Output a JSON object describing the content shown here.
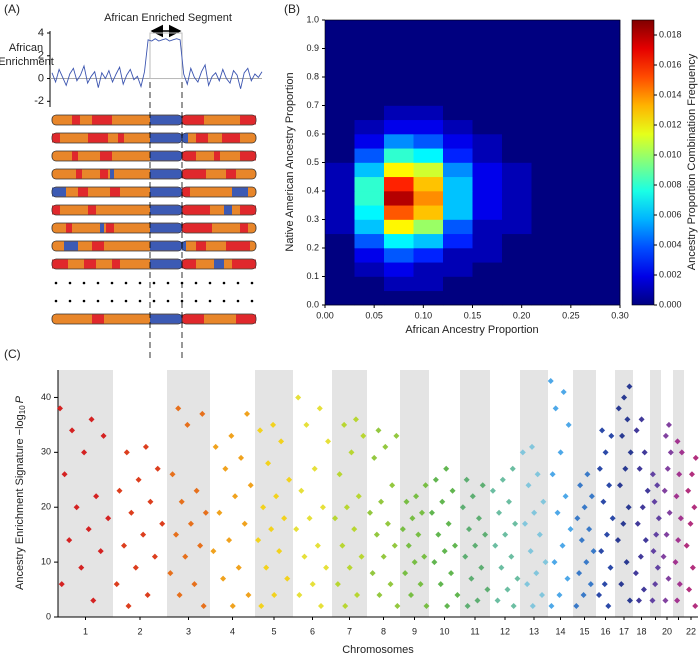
{
  "chart_data": [
    {
      "type": "line",
      "panel_label": "(A)",
      "annotation": "African Enriched Segment",
      "ylabel": [
        "African",
        "Enrichment"
      ],
      "color": "#3c55b0",
      "ylim": [
        -2.5,
        4
      ],
      "yticks": [
        4,
        2,
        0,
        -2
      ],
      "values": [
        0.5,
        -0.3,
        0.8,
        0.1,
        -0.6,
        0.4,
        0.9,
        -0.2,
        0.3,
        1.1,
        -0.4,
        0.2,
        0.6,
        -0.8,
        0.5,
        0.0,
        0.7,
        -0.3,
        0.4,
        1.0,
        -0.5,
        0.3,
        0.8,
        -0.1,
        0.2,
        -0.7,
        0.6,
        3.4,
        3.3,
        3.5,
        3.3,
        3.4,
        3.5,
        3.3,
        3.4,
        3.5,
        3.4,
        0.4,
        -0.5,
        0.9,
        0.1,
        -0.3,
        0.6,
        1.2,
        -0.6,
        0.2,
        0.5,
        -0.2,
        0.8,
        0.0,
        -0.4,
        0.7,
        0.3,
        -0.9,
        0.5,
        0.9,
        -0.2,
        0.4,
        0.1,
        0.6
      ]
    },
    {
      "type": "heatmap",
      "panel_label": "(B)",
      "xlabel": "African Ancestry Proportion",
      "ylabel": "Native American Ancestry Proportion",
      "colorbar_label": "Ancestry Proportion Combination Frequency",
      "xlim": [
        0,
        0.3
      ],
      "ylim": [
        0,
        1
      ],
      "zlim": [
        0,
        0.019
      ],
      "xticks": [
        {
          "value": 0,
          "label": "0.00"
        },
        {
          "value": 0.05,
          "label": "0.05"
        },
        {
          "value": 0.1,
          "label": "0.10"
        },
        {
          "value": 0.15,
          "label": "0.15"
        },
        {
          "value": 0.2,
          "label": "0.20"
        },
        {
          "value": 0.25,
          "label": "0.25"
        },
        {
          "value": 0.3,
          "label": "0.30"
        }
      ],
      "yticks": [
        {
          "value": 0,
          "label": "0.0"
        },
        {
          "value": 0.1,
          "label": "0.1"
        },
        {
          "value": 0.2,
          "label": "0.2"
        },
        {
          "value": 0.3,
          "label": "0.3"
        },
        {
          "value": 0.4,
          "label": "0.4"
        },
        {
          "value": 0.5,
          "label": "0.5"
        },
        {
          "value": 0.6,
          "label": "0.6"
        },
        {
          "value": 0.7,
          "label": "0.7"
        },
        {
          "value": 0.8,
          "label": "0.8"
        },
        {
          "value": 0.9,
          "label": "0.9"
        },
        {
          "value": 1,
          "label": "1.0"
        }
      ],
      "zticks": [
        {
          "value": 0,
          "label": "0.000"
        },
        {
          "value": 0.002,
          "label": "0.002"
        },
        {
          "value": 0.004,
          "label": "0.004"
        },
        {
          "value": 0.006,
          "label": "0.006"
        },
        {
          "value": 0.008,
          "label": "0.008"
        },
        {
          "value": 0.01,
          "label": "0.010"
        },
        {
          "value": 0.012,
          "label": "0.012"
        },
        {
          "value": 0.014,
          "label": "0.014"
        },
        {
          "value": 0.016,
          "label": "0.016"
        },
        {
          "value": 0.018,
          "label": "0.018"
        }
      ],
      "z": [
        [
          0,
          0,
          0,
          0,
          0,
          0,
          0,
          0,
          0,
          0
        ],
        [
          0,
          0,
          0.001,
          0.001,
          0,
          0,
          0,
          0,
          0,
          0
        ],
        [
          0,
          0.001,
          0.002,
          0.001,
          0.001,
          0,
          0,
          0,
          0,
          0
        ],
        [
          0,
          0.002,
          0.004,
          0.003,
          0.001,
          0.001,
          0,
          0,
          0,
          0
        ],
        [
          0,
          0.004,
          0.007,
          0.006,
          0.003,
          0.001,
          0,
          0,
          0,
          0
        ],
        [
          0.001,
          0.006,
          0.012,
          0.01,
          0.004,
          0.001,
          0.001,
          0,
          0,
          0
        ],
        [
          0.001,
          0.007,
          0.015,
          0.013,
          0.006,
          0.002,
          0.001,
          0,
          0,
          0
        ],
        [
          0.001,
          0.008,
          0.018,
          0.014,
          0.006,
          0.002,
          0.001,
          0,
          0,
          0
        ],
        [
          0.001,
          0.008,
          0.016,
          0.013,
          0.006,
          0.002,
          0.001,
          0,
          0,
          0
        ],
        [
          0.001,
          0.006,
          0.012,
          0.011,
          0.005,
          0.002,
          0.001,
          0,
          0,
          0
        ],
        [
          0,
          0.004,
          0.008,
          0.007,
          0.003,
          0.001,
          0,
          0,
          0,
          0
        ],
        [
          0,
          0.002,
          0.005,
          0.004,
          0.002,
          0.001,
          0,
          0,
          0,
          0
        ],
        [
          0,
          0.001,
          0.002,
          0.002,
          0.001,
          0,
          0,
          0,
          0,
          0
        ],
        [
          0,
          0,
          0.001,
          0.001,
          0,
          0,
          0,
          0,
          0,
          0
        ],
        [
          0,
          0,
          0,
          0,
          0,
          0,
          0,
          0,
          0,
          0
        ],
        [
          0,
          0,
          0,
          0,
          0,
          0,
          0,
          0,
          0,
          0
        ],
        [
          0,
          0,
          0,
          0,
          0,
          0,
          0,
          0,
          0,
          0
        ],
        [
          0,
          0,
          0,
          0,
          0,
          0,
          0,
          0,
          0,
          0
        ],
        [
          0,
          0,
          0,
          0,
          0,
          0,
          0,
          0,
          0,
          0
        ],
        [
          0,
          0,
          0,
          0,
          0,
          0,
          0,
          0,
          0,
          0
        ]
      ]
    },
    {
      "type": "manhattan",
      "panel_label": "(C)",
      "xlabel": "Chromosomes",
      "ylabel": [
        "Ancestry Enrichment Signature −log",
        "10",
        "P"
      ],
      "ylim": [
        0,
        45
      ],
      "yticks": [
        0,
        10,
        20,
        30,
        40
      ],
      "categories": [
        "1",
        "2",
        "3",
        "4",
        "5",
        "6",
        "7",
        "8",
        "9",
        "10",
        "11",
        "12",
        "13",
        "14",
        "15",
        "16",
        "17",
        "18",
        null,
        "20",
        null,
        "22"
      ],
      "colors": [
        "#d42222",
        "#dc3e1e",
        "#e6701c",
        "#f0a21e",
        "#f2d21e",
        "#e6e03a",
        "#b8d632",
        "#94c840",
        "#78be44",
        "#62b650",
        "#5eae72",
        "#6cbea2",
        "#82c6dc",
        "#4ea8e8",
        "#3a7ac8",
        "#2c4aa8",
        "#2a3a92",
        "#423a9a",
        "#6242a2",
        "#8242a0",
        "#a23490",
        "#b2307e"
      ],
      "values": [
        [
          38,
          36,
          34,
          33,
          30,
          26,
          22,
          20,
          18,
          16,
          14,
          12,
          9,
          6,
          3
        ],
        [
          31,
          30,
          27,
          25,
          23,
          21,
          19,
          17,
          15,
          13,
          11,
          9,
          6,
          4,
          2
        ],
        [
          38,
          37,
          35,
          26,
          23,
          21,
          19,
          17,
          15,
          13,
          11,
          8,
          6,
          4,
          2
        ],
        [
          37,
          33,
          31,
          29,
          27,
          24,
          22,
          19,
          17,
          14,
          12,
          9,
          7,
          4,
          2
        ],
        [
          35,
          34,
          32,
          28,
          25,
          22,
          20,
          18,
          16,
          14,
          12,
          9,
          7,
          4,
          2
        ],
        [
          40,
          38,
          35,
          32,
          27,
          23,
          20,
          18,
          16,
          13,
          11,
          9,
          6,
          4,
          2
        ],
        [
          36,
          35,
          33,
          30,
          26,
          22,
          20,
          18,
          16,
          13,
          11,
          9,
          6,
          4,
          2
        ],
        [
          34,
          33,
          31,
          29,
          24,
          21,
          19,
          17,
          15,
          13,
          11,
          8,
          6,
          4,
          2
        ],
        [
          24,
          22,
          21,
          19,
          18,
          16,
          15,
          13,
          11,
          10,
          8,
          6,
          4,
          2
        ],
        [
          27,
          25,
          23,
          21,
          19,
          17,
          15,
          13,
          12,
          10,
          8,
          6,
          4,
          2
        ],
        [
          25,
          24,
          22,
          20,
          18,
          16,
          15,
          13,
          11,
          9,
          7,
          5,
          3,
          2
        ],
        [
          27,
          25,
          23,
          21,
          19,
          17,
          15,
          13,
          11,
          9,
          7,
          5,
          3,
          2
        ],
        [
          31,
          30,
          26,
          24,
          21,
          19,
          17,
          15,
          12,
          10,
          8,
          6,
          4,
          2
        ],
        [
          43,
          41,
          38,
          35,
          30,
          26,
          22,
          19,
          16,
          13,
          10,
          7,
          4,
          2
        ],
        [
          26,
          24,
          22,
          20,
          18,
          16,
          14,
          12,
          10,
          8,
          6,
          4,
          2
        ],
        [
          34,
          33,
          30,
          27,
          24,
          21,
          18,
          15,
          12,
          9,
          6,
          4,
          2
        ],
        [
          42,
          40,
          38,
          36,
          33,
          30,
          27,
          24,
          20,
          17,
          14,
          10,
          6,
          3
        ],
        [
          36,
          34,
          30,
          27,
          23,
          20,
          17,
          14,
          11,
          8,
          5,
          3
        ],
        [
          26,
          24,
          21,
          18,
          15,
          12,
          9,
          6,
          3
        ],
        [
          35,
          33,
          30,
          27,
          23,
          19,
          15,
          11,
          7,
          3
        ],
        [
          32,
          30,
          26,
          22,
          18,
          14,
          10,
          6,
          3
        ],
        [
          29,
          26,
          23,
          20,
          17,
          13,
          9,
          5,
          2
        ]
      ]
    }
  ]
}
